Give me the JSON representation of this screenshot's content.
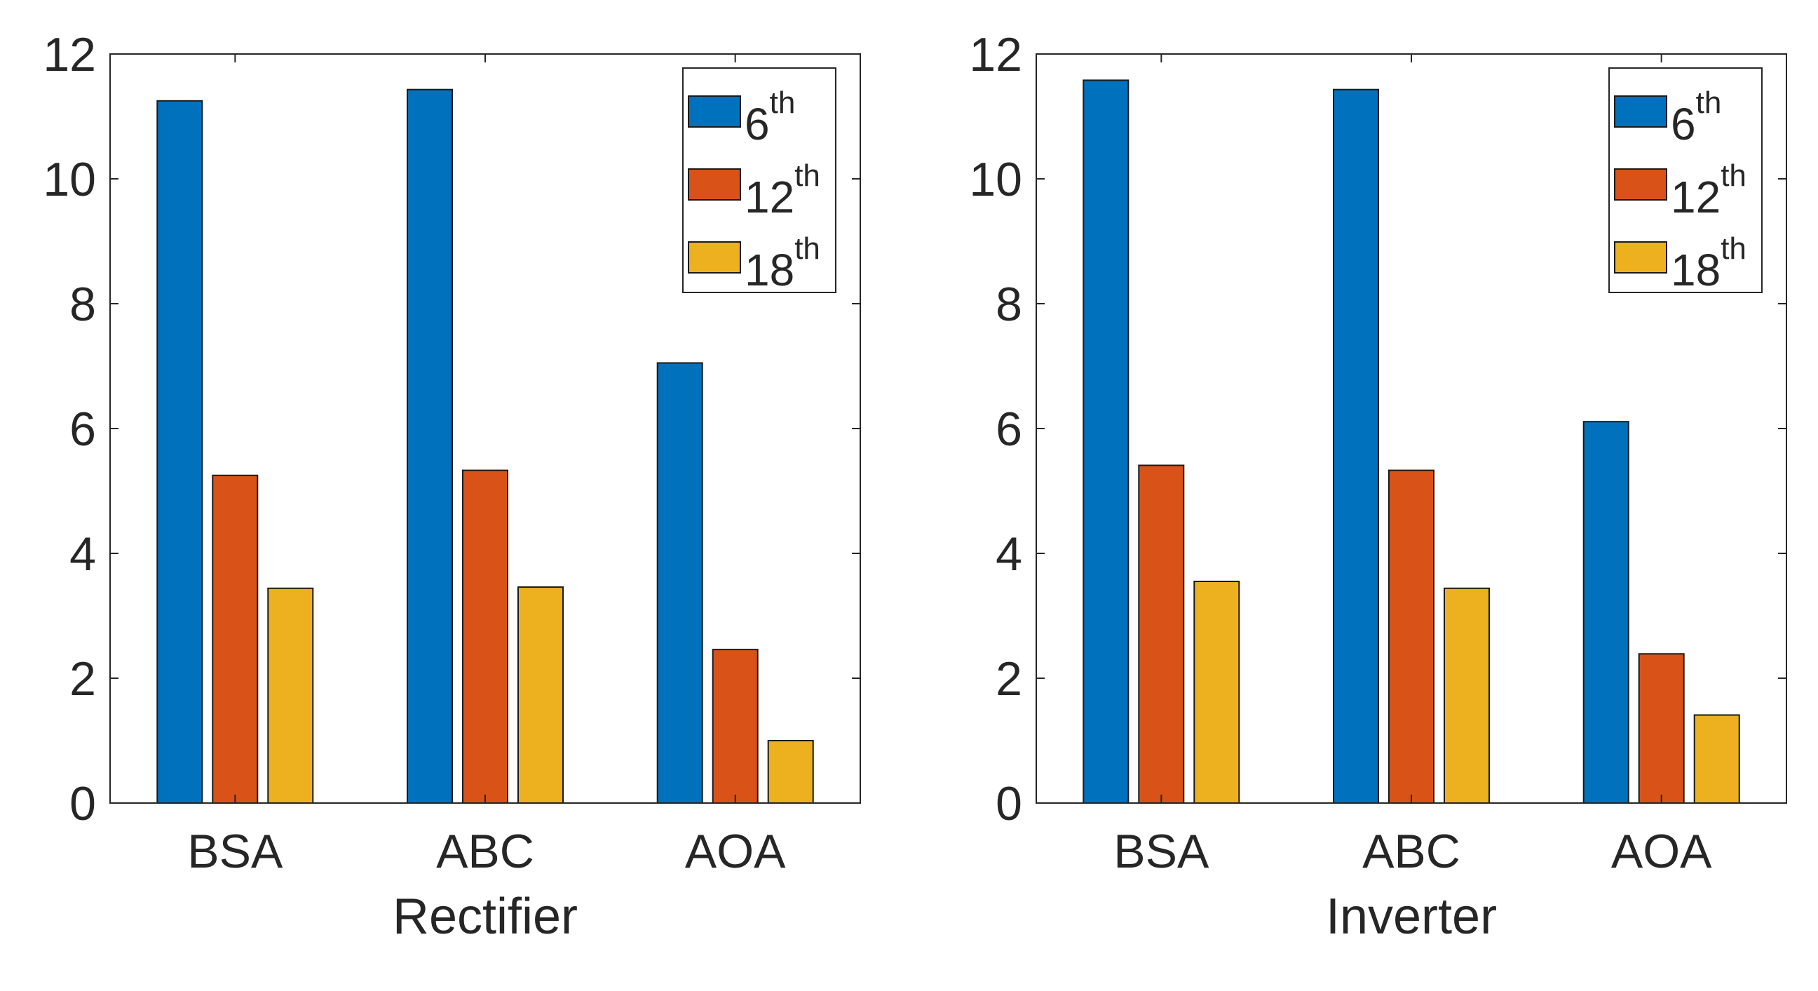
{
  "chart_data": [
    {
      "type": "bar",
      "title": "",
      "xlabel": "Rectifier",
      "ylabel": "",
      "categories": [
        "BSA",
        "ABC",
        "AOA"
      ],
      "ylim": [
        0,
        12
      ],
      "yticks": [
        "0",
        "2",
        "4",
        "6",
        "8",
        "10",
        "12"
      ],
      "legend_position": "top-right",
      "series": [
        {
          "name": "6",
          "suffix": "th",
          "color": "#0072BD",
          "values": [
            11.25,
            11.43,
            7.05
          ]
        },
        {
          "name": "12",
          "suffix": "th",
          "color": "#D95319",
          "values": [
            5.25,
            5.33,
            2.46
          ]
        },
        {
          "name": "18",
          "suffix": "th",
          "color": "#EDB120",
          "values": [
            3.44,
            3.46,
            1.0
          ]
        }
      ]
    },
    {
      "type": "bar",
      "title": "",
      "xlabel": "Inverter",
      "ylabel": "",
      "categories": [
        "BSA",
        "ABC",
        "AOA"
      ],
      "ylim": [
        0,
        12
      ],
      "yticks": [
        "0",
        "2",
        "4",
        "6",
        "8",
        "10",
        "12"
      ],
      "legend_position": "top-right",
      "series": [
        {
          "name": "6",
          "suffix": "th",
          "color": "#0072BD",
          "values": [
            11.58,
            11.43,
            6.11
          ]
        },
        {
          "name": "12",
          "suffix": "th",
          "color": "#D95319",
          "values": [
            5.41,
            5.33,
            2.39
          ]
        },
        {
          "name": "18",
          "suffix": "th",
          "color": "#EDB120",
          "values": [
            3.55,
            3.44,
            1.41
          ]
        }
      ]
    }
  ]
}
